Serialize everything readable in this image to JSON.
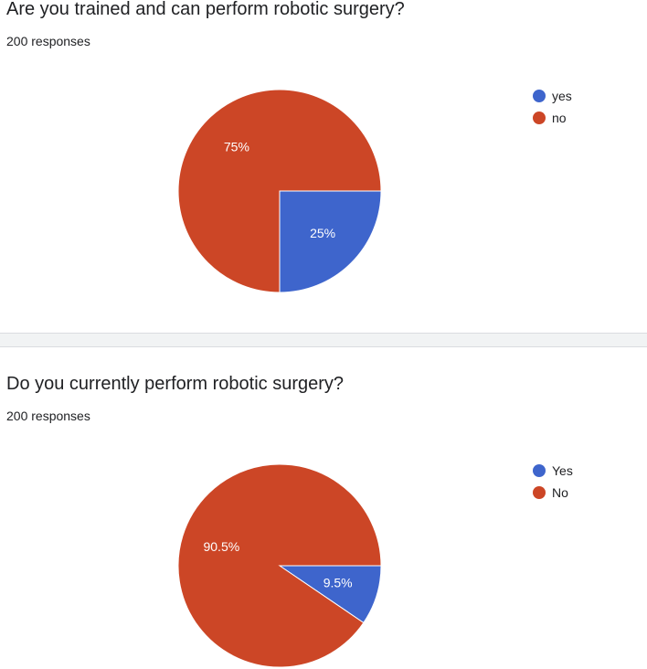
{
  "chart_data": [
    {
      "type": "pie",
      "title": "Are you trained and can perform robotic surgery?",
      "subtitle": "200 responses",
      "categories": [
        "yes",
        "no"
      ],
      "values": [
        25,
        75
      ],
      "labels": [
        "25%",
        "75%"
      ],
      "colors": [
        "#3e65cc",
        "#cc4626"
      ],
      "legend": "top-right"
    },
    {
      "type": "pie",
      "title": "Do you currently perform robotic surgery?",
      "subtitle": "200 responses",
      "categories": [
        "Yes",
        "No"
      ],
      "values": [
        9.5,
        90.5
      ],
      "labels": [
        "9.5%",
        "90.5%"
      ],
      "colors": [
        "#3e65cc",
        "#cc4626"
      ],
      "legend": "top-right"
    }
  ]
}
